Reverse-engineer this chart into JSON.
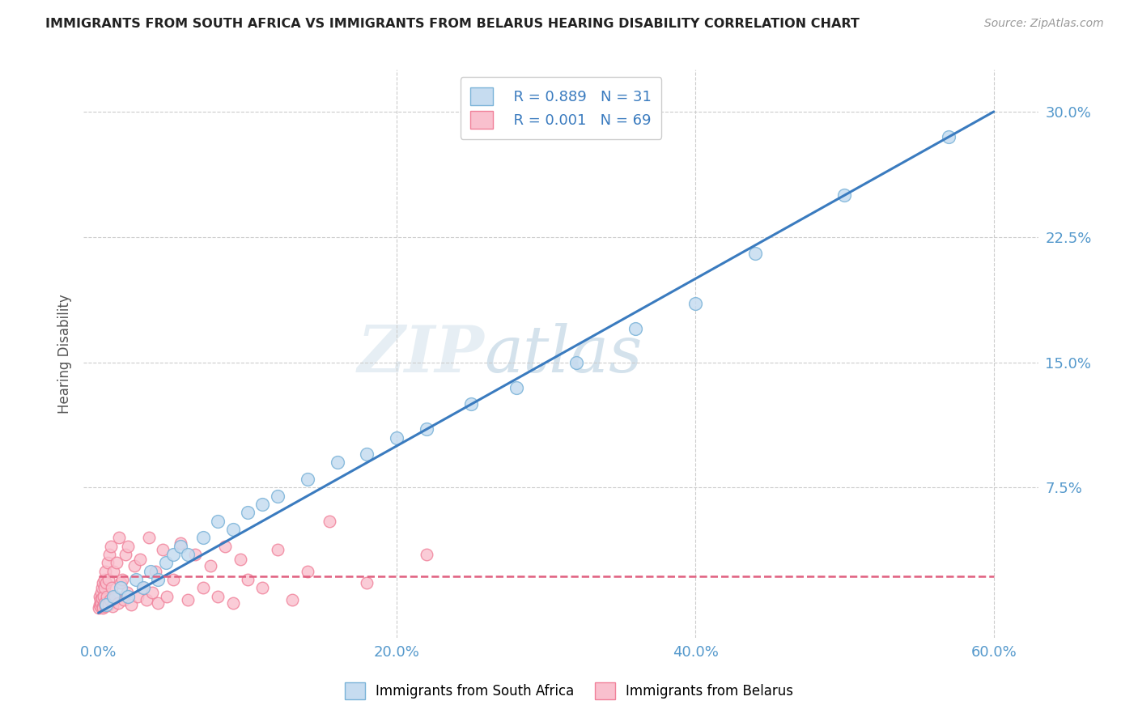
{
  "title": "IMMIGRANTS FROM SOUTH AFRICA VS IMMIGRANTS FROM BELARUS HEARING DISABILITY CORRELATION CHART",
  "source": "Source: ZipAtlas.com",
  "xlabel_ticks": [
    "0.0%",
    "20.0%",
    "40.0%",
    "60.0%"
  ],
  "xlabel_tick_vals": [
    0.0,
    20.0,
    40.0,
    60.0
  ],
  "ylabel_ticks": [
    "30.0%",
    "22.5%",
    "15.0%",
    "7.5%",
    ""
  ],
  "ylabel_tick_vals": [
    30.0,
    22.5,
    15.0,
    7.5,
    0.0
  ],
  "xlim": [
    -1.0,
    63.0
  ],
  "ylim": [
    -1.5,
    32.5
  ],
  "watermark_zip": "ZIP",
  "watermark_atlas": "atlas",
  "legend_r1": "R = 0.889",
  "legend_n1": "N = 31",
  "legend_r2": "R = 0.001",
  "legend_n2": "N = 69",
  "color_blue_scatter_face": "#c6dcf0",
  "color_blue_scatter_edge": "#7ab3d8",
  "color_blue_line": "#3a7bbf",
  "color_pink_scatter_face": "#f9c0ce",
  "color_pink_scatter_edge": "#f08099",
  "color_pink_line": "#e06080",
  "ylabel": "Hearing Disability",
  "background": "#ffffff",
  "grid_color": "#cccccc",
  "title_color": "#222222",
  "axis_label_color": "#5599cc",
  "south_africa_x": [
    0.5,
    1.0,
    1.5,
    2.0,
    2.5,
    3.0,
    3.5,
    4.0,
    4.5,
    5.0,
    5.5,
    6.0,
    7.0,
    8.0,
    9.0,
    10.0,
    11.0,
    12.0,
    14.0,
    16.0,
    18.0,
    20.0,
    22.0,
    25.0,
    28.0,
    32.0,
    36.0,
    40.0,
    44.0,
    50.0,
    57.0
  ],
  "south_africa_y": [
    0.5,
    1.0,
    1.5,
    1.0,
    2.0,
    1.5,
    2.5,
    2.0,
    3.0,
    3.5,
    4.0,
    3.5,
    4.5,
    5.5,
    5.0,
    6.0,
    6.5,
    7.0,
    8.0,
    9.0,
    9.5,
    10.5,
    11.0,
    12.5,
    13.5,
    15.0,
    17.0,
    18.5,
    21.5,
    25.0,
    28.5
  ],
  "belarus_x": [
    0.05,
    0.08,
    0.1,
    0.12,
    0.15,
    0.18,
    0.2,
    0.22,
    0.25,
    0.28,
    0.3,
    0.32,
    0.35,
    0.38,
    0.4,
    0.42,
    0.45,
    0.48,
    0.5,
    0.55,
    0.6,
    0.65,
    0.7,
    0.75,
    0.8,
    0.85,
    0.9,
    0.95,
    1.0,
    1.1,
    1.2,
    1.3,
    1.4,
    1.5,
    1.6,
    1.7,
    1.8,
    1.9,
    2.0,
    2.2,
    2.4,
    2.6,
    2.8,
    3.0,
    3.2,
    3.4,
    3.6,
    3.8,
    4.0,
    4.3,
    4.6,
    5.0,
    5.5,
    6.0,
    6.5,
    7.0,
    7.5,
    8.0,
    8.5,
    9.0,
    9.5,
    10.0,
    11.0,
    12.0,
    13.0,
    14.0,
    15.5,
    18.0,
    22.0
  ],
  "belarus_y": [
    0.3,
    0.5,
    1.0,
    0.8,
    0.4,
    1.2,
    0.6,
    1.5,
    0.9,
    0.4,
    1.8,
    0.3,
    1.0,
    2.0,
    0.6,
    1.5,
    2.5,
    0.4,
    1.8,
    1.0,
    3.0,
    0.5,
    2.0,
    3.5,
    0.8,
    4.0,
    1.5,
    0.4,
    2.5,
    1.0,
    3.0,
    0.6,
    4.5,
    1.8,
    2.0,
    0.8,
    3.5,
    1.2,
    4.0,
    0.5,
    2.8,
    1.0,
    3.2,
    1.5,
    0.8,
    4.5,
    1.2,
    2.5,
    0.6,
    3.8,
    1.0,
    2.0,
    4.2,
    0.8,
    3.5,
    1.5,
    2.8,
    1.0,
    4.0,
    0.6,
    3.2,
    2.0,
    1.5,
    3.8,
    0.8,
    2.5,
    5.5,
    1.8,
    3.5
  ],
  "blue_line_x0": 0.0,
  "blue_line_y0": 0.0,
  "blue_line_x1": 60.0,
  "blue_line_y1": 30.0,
  "pink_line_x0": 0.0,
  "pink_line_y0": 2.2,
  "pink_line_x1": 60.0,
  "pink_line_y1": 2.2
}
